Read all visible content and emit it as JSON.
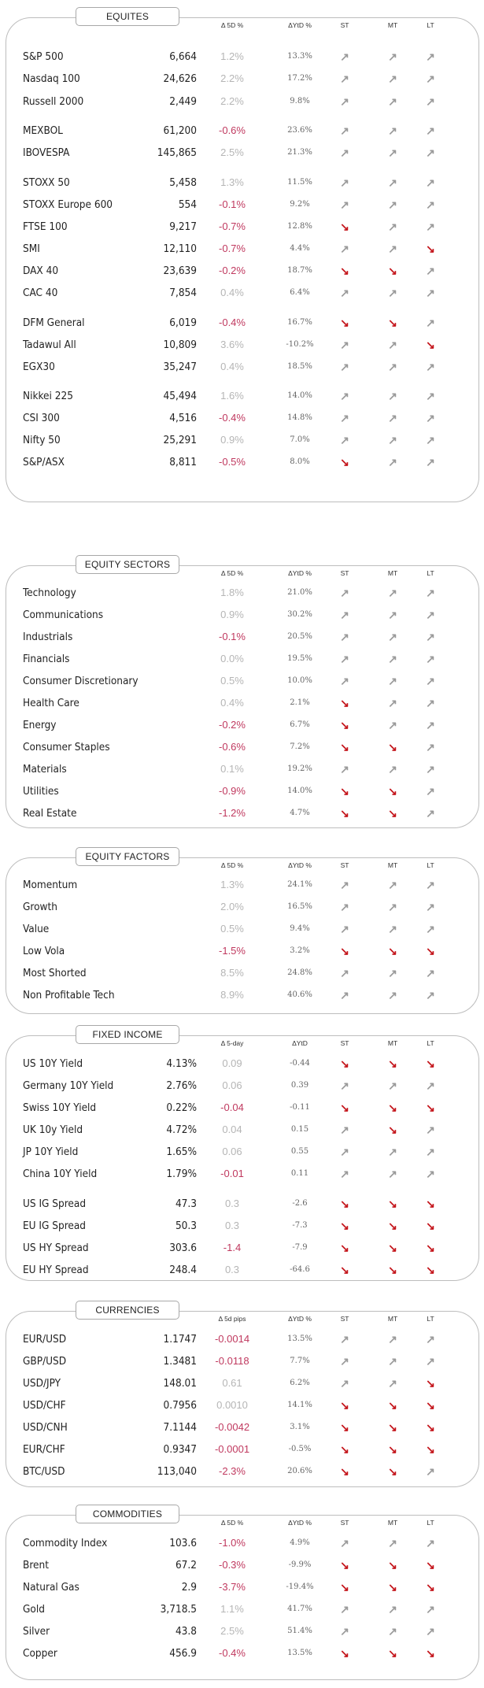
{
  "columns": {
    "d5": "Δ 5D %",
    "d5day": "Δ 5-day",
    "d5pips": "Δ 5d pips",
    "ytd_pct": "ΔYtD %",
    "ytd": "ΔYtD",
    "st": "ST",
    "mt": "MT",
    "lt": "LT"
  },
  "colors": {
    "negative": "#c0395f",
    "positive": "#b5b5b5",
    "arrow_up": "#9a9a9a",
    "arrow_down": "#c4161c"
  },
  "arrows": {
    "up": "↗",
    "down": "↘"
  },
  "equities": {
    "title": "EQUITES",
    "rows": [
      {
        "name": "S&P 500",
        "level": "6,664",
        "d5": "1.2%",
        "ytd": "13.3%",
        "st": "up",
        "mt": "up",
        "lt": "up"
      },
      {
        "name": "Nasdaq 100",
        "level": "24,626",
        "d5": "2.2%",
        "ytd": "17.2%",
        "st": "up",
        "mt": "up",
        "lt": "up"
      },
      {
        "name": "Russell 2000",
        "level": "2,449",
        "d5": "2.2%",
        "ytd": "9.8%",
        "st": "up",
        "mt": "up",
        "lt": "up"
      },
      {
        "name": "MEXBOL",
        "level": "61,200",
        "d5": "-0.6%",
        "ytd": "23.6%",
        "st": "up",
        "mt": "up",
        "lt": "up"
      },
      {
        "name": "IBOVESPA",
        "level": "145,865",
        "d5": "2.5%",
        "ytd": "21.3%",
        "st": "up",
        "mt": "up",
        "lt": "up"
      },
      {
        "name": "STOXX 50",
        "level": "5,458",
        "d5": "1.3%",
        "ytd": "11.5%",
        "st": "up",
        "mt": "up",
        "lt": "up"
      },
      {
        "name": "STOXX Europe 600",
        "level": "554",
        "d5": "-0.1%",
        "ytd": "9.2%",
        "st": "up",
        "mt": "up",
        "lt": "up"
      },
      {
        "name": "FTSE 100",
        "level": "9,217",
        "d5": "-0.7%",
        "ytd": "12.8%",
        "st": "down",
        "mt": "up",
        "lt": "up"
      },
      {
        "name": "SMI",
        "level": "12,110",
        "d5": "-0.7%",
        "ytd": "4.4%",
        "st": "up",
        "mt": "up",
        "lt": "down"
      },
      {
        "name": "DAX 40",
        "level": "23,639",
        "d5": "-0.2%",
        "ytd": "18.7%",
        "st": "down",
        "mt": "down",
        "lt": "up"
      },
      {
        "name": "CAC 40",
        "level": "7,854",
        "d5": "0.4%",
        "ytd": "6.4%",
        "st": "up",
        "mt": "up",
        "lt": "up"
      },
      {
        "name": "DFM General",
        "level": "6,019",
        "d5": "-0.4%",
        "ytd": "16.7%",
        "st": "down",
        "mt": "down",
        "lt": "up"
      },
      {
        "name": "Tadawul All",
        "level": "10,809",
        "d5": "3.6%",
        "ytd": "-10.2%",
        "st": "up",
        "mt": "up",
        "lt": "down"
      },
      {
        "name": "EGX30",
        "level": "35,247",
        "d5": "0.4%",
        "ytd": "18.5%",
        "st": "up",
        "mt": "up",
        "lt": "up"
      },
      {
        "name": "Nikkei 225",
        "level": "45,494",
        "d5": "1.6%",
        "ytd": "14.0%",
        "st": "up",
        "mt": "up",
        "lt": "up"
      },
      {
        "name": "CSI 300",
        "level": "4,516",
        "d5": "-0.4%",
        "ytd": "14.8%",
        "st": "up",
        "mt": "up",
        "lt": "up"
      },
      {
        "name": "Nifty 50",
        "level": "25,291",
        "d5": "0.9%",
        "ytd": "7.0%",
        "st": "up",
        "mt": "up",
        "lt": "up"
      },
      {
        "name": "S&P/ASX",
        "level": "8,811",
        "d5": "-0.5%",
        "ytd": "8.0%",
        "st": "down",
        "mt": "up",
        "lt": "up"
      }
    ]
  },
  "sectors": {
    "title": "EQUITY SECTORS",
    "rows": [
      {
        "name": "Technology",
        "level": "",
        "d5": "1.8%",
        "ytd": "21.0%",
        "st": "up",
        "mt": "up",
        "lt": "up"
      },
      {
        "name": "Communications",
        "level": "",
        "d5": "0.9%",
        "ytd": "30.2%",
        "st": "up",
        "mt": "up",
        "lt": "up"
      },
      {
        "name": "Industrials",
        "level": "",
        "d5": "-0.1%",
        "ytd": "20.5%",
        "st": "up",
        "mt": "up",
        "lt": "up"
      },
      {
        "name": "Financials",
        "level": "",
        "d5": "0.0%",
        "ytd": "19.5%",
        "st": "up",
        "mt": "up",
        "lt": "up"
      },
      {
        "name": "Consumer Discretionary",
        "level": "",
        "d5": "0.5%",
        "ytd": "10.0%",
        "st": "up",
        "mt": "up",
        "lt": "up"
      },
      {
        "name": "Health Care",
        "level": "",
        "d5": "0.4%",
        "ytd": "2.1%",
        "st": "down",
        "mt": "up",
        "lt": "up"
      },
      {
        "name": "Energy",
        "level": "",
        "d5": "-0.2%",
        "ytd": "6.7%",
        "st": "down",
        "mt": "up",
        "lt": "up"
      },
      {
        "name": "Consumer Staples",
        "level": "",
        "d5": "-0.6%",
        "ytd": "7.2%",
        "st": "down",
        "mt": "down",
        "lt": "up"
      },
      {
        "name": "Materials",
        "level": "",
        "d5": "0.1%",
        "ytd": "19.2%",
        "st": "up",
        "mt": "up",
        "lt": "up"
      },
      {
        "name": "Utilities",
        "level": "",
        "d5": "-0.9%",
        "ytd": "14.0%",
        "st": "down",
        "mt": "down",
        "lt": "up"
      },
      {
        "name": "Real Estate",
        "level": "",
        "d5": "-1.2%",
        "ytd": "4.7%",
        "st": "down",
        "mt": "down",
        "lt": "up"
      }
    ]
  },
  "factors": {
    "title": "EQUITY FACTORS",
    "rows": [
      {
        "name": "Momentum",
        "level": "",
        "d5": "1.3%",
        "ytd": "24.1%",
        "st": "up",
        "mt": "up",
        "lt": "up"
      },
      {
        "name": "Growth",
        "level": "",
        "d5": "2.0%",
        "ytd": "16.5%",
        "st": "up",
        "mt": "up",
        "lt": "up"
      },
      {
        "name": "Value",
        "level": "",
        "d5": "0.5%",
        "ytd": "9.4%",
        "st": "up",
        "mt": "up",
        "lt": "up"
      },
      {
        "name": "Low Vola",
        "level": "",
        "d5": "-1.5%",
        "ytd": "3.2%",
        "st": "down",
        "mt": "down",
        "lt": "down"
      },
      {
        "name": "Most Shorted",
        "level": "",
        "d5": "8.5%",
        "ytd": "24.8%",
        "st": "up",
        "mt": "up",
        "lt": "up"
      },
      {
        "name": "Non Profitable Tech",
        "level": "",
        "d5": "8.9%",
        "ytd": "40.6%",
        "st": "up",
        "mt": "up",
        "lt": "up"
      }
    ]
  },
  "fixed_income": {
    "title": "FIXED INCOME",
    "rows": [
      {
        "name": "US 10Y Yield",
        "level": "4.13%",
        "d5": "0.09",
        "ytd": "-0.44",
        "st": "down",
        "mt": "down",
        "lt": "down"
      },
      {
        "name": "Germany 10Y Yield",
        "level": "2.76%",
        "d5": "0.06",
        "ytd": "0.39",
        "st": "up",
        "mt": "up",
        "lt": "up"
      },
      {
        "name": "Swiss 10Y Yield",
        "level": "0.22%",
        "d5": "-0.04",
        "ytd": "-0.11",
        "st": "down",
        "mt": "down",
        "lt": "down"
      },
      {
        "name": "UK 10y Yield",
        "level": "4.72%",
        "d5": "0.04",
        "ytd": "0.15",
        "st": "up",
        "mt": "down",
        "lt": "up"
      },
      {
        "name": "JP 10Y Yield",
        "level": "1.65%",
        "d5": "0.06",
        "ytd": "0.55",
        "st": "up",
        "mt": "up",
        "lt": "up"
      },
      {
        "name": "China 10Y Yield",
        "level": "1.79%",
        "d5": "-0.01",
        "ytd": "0.11",
        "st": "up",
        "mt": "up",
        "lt": "up"
      },
      {
        "name": "US IG Spread",
        "level": "47.3",
        "d5": "0.3",
        "ytd": "-2.6",
        "st": "down",
        "mt": "down",
        "lt": "down"
      },
      {
        "name": "EU IG Spread",
        "level": "50.3",
        "d5": "0.3",
        "ytd": "-7.3",
        "st": "down",
        "mt": "down",
        "lt": "down"
      },
      {
        "name": "US HY Spread",
        "level": "303.6",
        "d5": "-1.4",
        "ytd": "-7.9",
        "st": "down",
        "mt": "down",
        "lt": "down"
      },
      {
        "name": "EU HY Spread",
        "level": "248.4",
        "d5": "0.3",
        "ytd": "-64.6",
        "st": "down",
        "mt": "down",
        "lt": "down"
      }
    ]
  },
  "currencies": {
    "title": "CURRENCIES",
    "rows": [
      {
        "name": "EUR/USD",
        "level": "1.1747",
        "d5": "-0.0014",
        "ytd": "13.5%",
        "st": "up",
        "mt": "up",
        "lt": "up"
      },
      {
        "name": "GBP/USD",
        "level": "1.3481",
        "d5": "-0.0118",
        "ytd": "7.7%",
        "st": "up",
        "mt": "up",
        "lt": "up"
      },
      {
        "name": "USD/JPY",
        "level": "148.01",
        "d5": "0.61",
        "ytd": "6.2%",
        "st": "up",
        "mt": "up",
        "lt": "down"
      },
      {
        "name": "USD/CHF",
        "level": "0.7956",
        "d5": "0.0010",
        "ytd": "14.1%",
        "st": "down",
        "mt": "down",
        "lt": "down"
      },
      {
        "name": "USD/CNH",
        "level": "7.1144",
        "d5": "-0.0042",
        "ytd": "3.1%",
        "st": "down",
        "mt": "down",
        "lt": "down"
      },
      {
        "name": "EUR/CHF",
        "level": "0.9347",
        "d5": "-0.0001",
        "ytd": "-0.5%",
        "st": "down",
        "mt": "down",
        "lt": "down"
      },
      {
        "name": "BTC/USD",
        "level": "113,040",
        "d5": "-2.3%",
        "ytd": "20.6%",
        "st": "down",
        "mt": "down",
        "lt": "up"
      }
    ]
  },
  "commodities": {
    "title": "COMMODITIES",
    "rows": [
      {
        "name": "Commodity Index",
        "level": "103.6",
        "d5": "-1.0%",
        "ytd": "4.9%",
        "st": "up",
        "mt": "up",
        "lt": "up"
      },
      {
        "name": "Brent",
        "level": "67.2",
        "d5": "-0.3%",
        "ytd": "-9.9%",
        "st": "down",
        "mt": "down",
        "lt": "down"
      },
      {
        "name": "Natural Gas",
        "level": "2.9",
        "d5": "-3.7%",
        "ytd": "-19.4%",
        "st": "down",
        "mt": "down",
        "lt": "down"
      },
      {
        "name": "Gold",
        "level": "3,718.5",
        "d5": "1.1%",
        "ytd": "41.7%",
        "st": "up",
        "mt": "up",
        "lt": "up"
      },
      {
        "name": "Silver",
        "level": "43.8",
        "d5": "2.5%",
        "ytd": "51.4%",
        "st": "up",
        "mt": "up",
        "lt": "up"
      },
      {
        "name": "Copper",
        "level": "456.9",
        "d5": "-0.4%",
        "ytd": "13.5%",
        "st": "down",
        "mt": "down",
        "lt": "down"
      }
    ]
  }
}
